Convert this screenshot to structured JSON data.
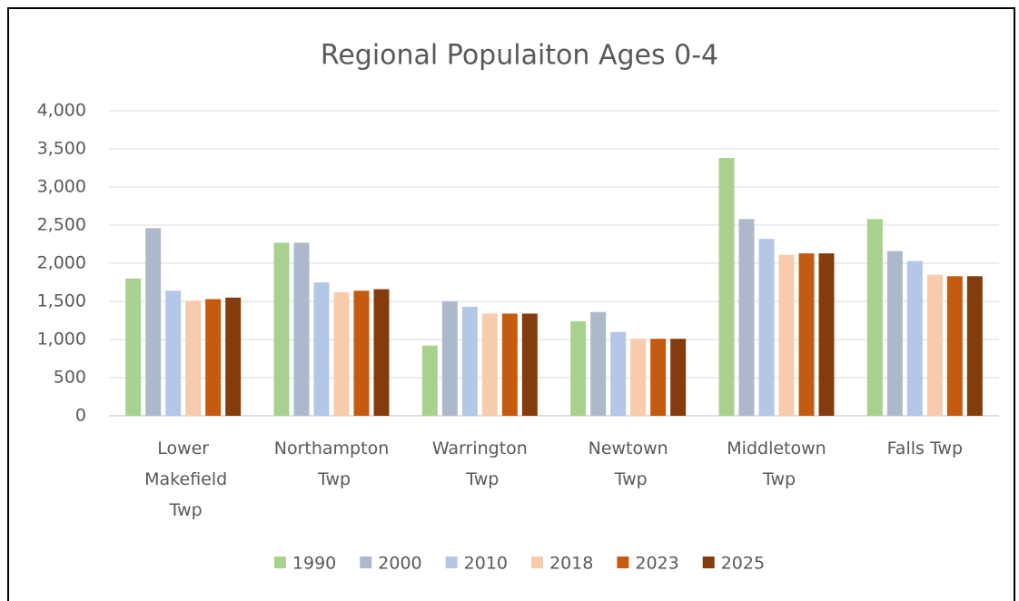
{
  "chart_data": {
    "type": "bar",
    "title": "Regional Populaiton Ages 0-4",
    "categories": [
      "Lower Makefield Twp",
      "Northampton Twp",
      "Warrington Twp",
      "Newtown Twp",
      "Middletown Twp",
      "Falls Twp"
    ],
    "series": [
      {
        "name": "1990",
        "color": "#a9d18e",
        "values": [
          1800,
          2270,
          920,
          1240,
          3380,
          2580
        ]
      },
      {
        "name": "2000",
        "color": "#adb9ca",
        "values": [
          2460,
          2270,
          1500,
          1360,
          2580,
          2160
        ]
      },
      {
        "name": "2010",
        "color": "#b4c7e7",
        "values": [
          1640,
          1750,
          1430,
          1100,
          2320,
          2030
        ]
      },
      {
        "name": "2018",
        "color": "#f8cbad",
        "values": [
          1510,
          1620,
          1340,
          1010,
          2110,
          1850
        ]
      },
      {
        "name": "2023",
        "color": "#c55a11",
        "values": [
          1530,
          1640,
          1340,
          1010,
          2130,
          1830
        ]
      },
      {
        "name": "2025",
        "color": "#843c0c",
        "values": [
          1550,
          1660,
          1340,
          1010,
          2130,
          1830
        ]
      }
    ],
    "ylim": [
      0,
      4000
    ],
    "yticks": [
      0,
      500,
      {
        "value": 1000,
        "label": "1,000"
      },
      {
        "value": 1500,
        "label": "1,500"
      },
      {
        "value": 2000,
        "label": "2,000"
      },
      {
        "value": 2500,
        "label": "2,500"
      },
      {
        "value": 3000,
        "label": "3,000"
      },
      {
        "value": 3500,
        "label": "3,500"
      },
      {
        "value": 4000,
        "label": "4,000"
      }
    ],
    "grid": true,
    "legend": "bottom"
  }
}
